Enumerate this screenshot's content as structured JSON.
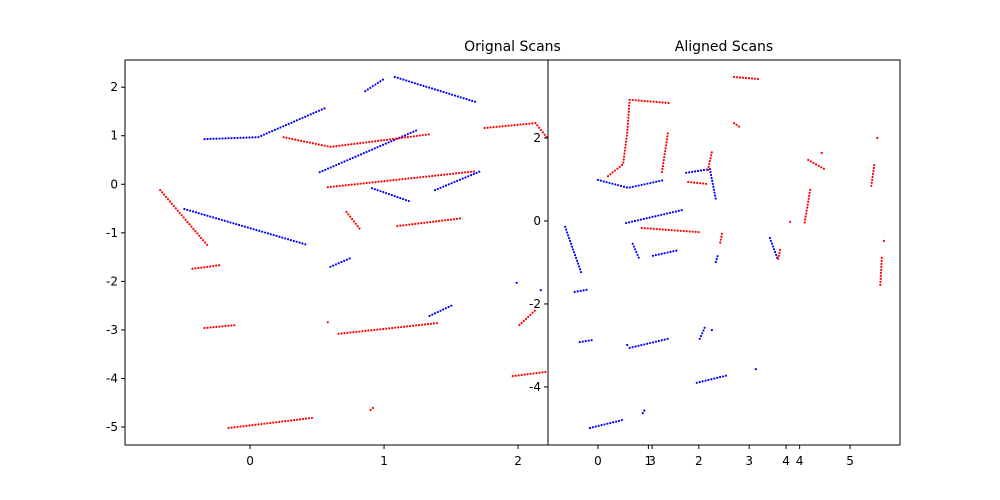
{
  "chart_data": [
    {
      "type": "scatter",
      "title": "Orignal Scans",
      "xlim": [
        -0.933,
        4.85
      ],
      "ylim": [
        -5.37,
        2.56
      ],
      "xticks": [
        0,
        1,
        2,
        3,
        4
      ],
      "yticks": [
        -5,
        -4,
        -3,
        -2,
        -1,
        0,
        1,
        2
      ],
      "series": [
        {
          "color": "blue",
          "x": [
            -0.34,
            0.06,
            0.56
          ],
          "y": [
            0.93,
            0.97,
            1.57
          ]
        },
        {
          "color": "blue",
          "x": [
            1.08,
            1.69
          ],
          "y": [
            2.21,
            1.69
          ]
        },
        {
          "color": "blue",
          "x": [
            0.86,
            1.01
          ],
          "y": [
            1.92,
            2.19
          ]
        },
        {
          "color": "blue",
          "x": [
            0.52,
            1.25
          ],
          "y": [
            0.25,
            1.12
          ]
        },
        {
          "color": "blue",
          "x": [
            0.91,
            1.19
          ],
          "y": [
            -0.08,
            -0.35
          ]
        },
        {
          "color": "blue",
          "x": [
            1.38,
            1.72
          ],
          "y": [
            -0.12,
            0.27
          ]
        },
        {
          "color": "blue",
          "x": [
            -0.49,
            0.43
          ],
          "y": [
            -0.51,
            -1.25
          ]
        },
        {
          "color": "blue",
          "x": [
            0.6,
            0.75
          ],
          "y": [
            -1.7,
            -1.52
          ]
        },
        {
          "color": "blue",
          "x": [
            1.34,
            1.51
          ],
          "y": [
            -2.71,
            -2.49
          ]
        },
        {
          "color": "blue",
          "x": [
            1.99
          ],
          "y": [
            -2.03
          ]
        },
        {
          "color": "blue",
          "x": [
            2.17
          ],
          "y": [
            -2.18
          ]
        },
        {
          "color": "red",
          "x": [
            -0.67,
            -0.32
          ],
          "y": [
            -0.12,
            -1.25
          ]
        },
        {
          "color": "red",
          "x": [
            0.25,
            0.6,
            1.34
          ],
          "y": [
            0.97,
            0.77,
            1.03
          ]
        },
        {
          "color": "red",
          "x": [
            0.58,
            1.69
          ],
          "y": [
            -0.06,
            0.27
          ]
        },
        {
          "color": "red",
          "x": [
            0.72,
            0.82
          ],
          "y": [
            -0.57,
            -0.92
          ]
        },
        {
          "color": "red",
          "x": [
            1.1,
            1.58
          ],
          "y": [
            -0.86,
            -0.7
          ]
        },
        {
          "color": "red",
          "x": [
            -0.43,
            -0.21
          ],
          "y": [
            -1.74,
            -1.66
          ]
        },
        {
          "color": "red",
          "x": [
            -0.34,
            -0.11
          ],
          "y": [
            -2.96,
            -2.9
          ]
        },
        {
          "color": "red",
          "x": [
            0.66,
            1.4
          ],
          "y": [
            -3.08,
            -2.86
          ]
        },
        {
          "color": "red",
          "x": [
            -0.16,
            0.47
          ],
          "y": [
            -5.02,
            -4.81
          ]
        },
        {
          "color": "red",
          "x": [
            1.75,
            2.13,
            2.22
          ],
          "y": [
            1.16,
            1.26,
            0.95
          ]
        },
        {
          "color": "red",
          "x": [
            1.96,
            2.22
          ],
          "y": [
            -3.95,
            -3.86
          ]
        },
        {
          "color": "red",
          "x": [
            2.01,
            2.13
          ],
          "y": [
            -2.9,
            -2.59
          ]
        },
        {
          "color": "red",
          "x": [
            0.58
          ],
          "y": [
            -2.84
          ]
        },
        {
          "color": "red",
          "x": [
            0.9,
            0.92
          ],
          "y": [
            -4.65,
            -4.6
          ]
        }
      ]
    },
    {
      "type": "scatter",
      "title": "Aligned Scans",
      "xlim": [
        -0.99,
        5.99
      ],
      "ylim": [
        -5.4,
        3.88
      ],
      "xticks": [
        0,
        1,
        2,
        3,
        4,
        5
      ],
      "yticks": [
        -4,
        -2,
        0,
        2
      ],
      "series": [
        {
          "color": "blue",
          "x": [
            -0.65,
            -0.33
          ],
          "y": [
            -0.14,
            -1.25
          ]
        },
        {
          "color": "blue",
          "x": [
            -0.46,
            -0.22
          ],
          "y": [
            -1.71,
            -1.66
          ]
        },
        {
          "color": "blue",
          "x": [
            -0.36,
            -0.1
          ],
          "y": [
            -2.92,
            -2.87
          ]
        },
        {
          "color": "blue",
          "x": [
            -0.16,
            0.48
          ],
          "y": [
            -4.99,
            -4.8
          ]
        },
        {
          "color": "blue",
          "x": [
            0,
            0.6,
            1.33
          ],
          "y": [
            0.99,
            0.8,
            0.99
          ]
        },
        {
          "color": "blue",
          "x": [
            0.56,
            1.69
          ],
          "y": [
            -0.05,
            0.27
          ]
        },
        {
          "color": "blue",
          "x": [
            0.69,
            0.83
          ],
          "y": [
            -0.55,
            -0.94
          ]
        },
        {
          "color": "blue",
          "x": [
            1.09,
            1.61
          ],
          "y": [
            -0.84,
            -0.7
          ]
        },
        {
          "color": "blue",
          "x": [
            0.63,
            1.39
          ],
          "y": [
            -3.06,
            -2.84
          ]
        },
        {
          "color": "blue",
          "x": [
            0.89,
            0.93
          ],
          "y": [
            -4.63,
            -4.55
          ]
        },
        {
          "color": "blue",
          "x": [
            1.75,
            2.22,
            2.34
          ],
          "y": [
            1.16,
            1.25,
            0.51
          ]
        },
        {
          "color": "blue",
          "x": [
            2.02,
            2.14
          ],
          "y": [
            -2.84,
            -2.51
          ]
        },
        {
          "color": "blue",
          "x": [
            2.26
          ],
          "y": [
            -2.63
          ]
        },
        {
          "color": "blue",
          "x": [
            1.96,
            2.54
          ],
          "y": [
            -3.9,
            -3.73
          ]
        },
        {
          "color": "blue",
          "x": [
            3.13
          ],
          "y": [
            -3.57
          ]
        },
        {
          "color": "blue",
          "x": [
            2.34,
            2.38
          ],
          "y": [
            -0.99,
            -0.82
          ]
        },
        {
          "color": "blue",
          "x": [
            3.41,
            3.57
          ],
          "y": [
            -0.41,
            -0.94
          ]
        },
        {
          "color": "blue",
          "x": [
            0.58
          ],
          "y": [
            -2.99
          ]
        },
        {
          "color": "red",
          "x": [
            0.2,
            0.5,
            0.58,
            0.63,
            1.43
          ],
          "y": [
            1.08,
            1.37,
            2.12,
            2.92,
            2.84
          ]
        },
        {
          "color": "red",
          "x": [
            1.27,
            1.39
          ],
          "y": [
            1.18,
            2.14
          ]
        },
        {
          "color": "red",
          "x": [
            1.79,
            2.18
          ],
          "y": [
            0.94,
            0.89
          ]
        },
        {
          "color": "red",
          "x": [
            2.18,
            2.26
          ],
          "y": [
            1.23,
            1.66
          ]
        },
        {
          "color": "red",
          "x": [
            0.87,
            2.02
          ],
          "y": [
            -0.17,
            -0.27
          ]
        },
        {
          "color": "red",
          "x": [
            2.7,
            3.21
          ],
          "y": [
            3.47,
            3.42
          ]
        },
        {
          "color": "red",
          "x": [
            2.7,
            2.84
          ],
          "y": [
            2.36,
            2.24
          ]
        },
        {
          "color": "red",
          "x": [
            2.46,
            2.42
          ],
          "y": [
            -0.31,
            -0.55
          ]
        },
        {
          "color": "red",
          "x": [
            3.61,
            3.57
          ],
          "y": [
            -0.7,
            -0.94
          ]
        },
        {
          "color": "red",
          "x": [
            4.17,
            4.52
          ],
          "y": [
            1.47,
            1.23
          ]
        },
        {
          "color": "red",
          "x": [
            4.44
          ],
          "y": [
            1.64
          ]
        },
        {
          "color": "red",
          "x": [
            4.21,
            4.09
          ],
          "y": [
            0.75,
            -0.1
          ]
        },
        {
          "color": "red",
          "x": [
            3.81
          ],
          "y": [
            -0.02
          ]
        },
        {
          "color": "red",
          "x": [
            5.48,
            5.42
          ],
          "y": [
            1.35,
            0.84
          ]
        },
        {
          "color": "red",
          "x": [
            5.54
          ],
          "y": [
            2.0
          ]
        },
        {
          "color": "red",
          "x": [
            5.63,
            5.6
          ],
          "y": [
            -0.89,
            -1.54
          ]
        },
        {
          "color": "red",
          "x": [
            5.67,
            5.71
          ],
          "y": [
            -0.48,
            -0.51
          ]
        }
      ]
    }
  ]
}
